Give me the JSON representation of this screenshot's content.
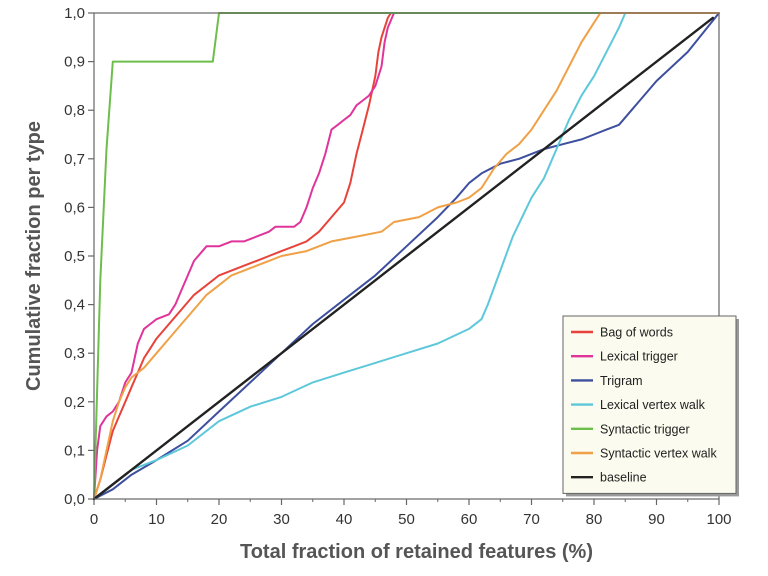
{
  "chart_data": {
    "type": "line",
    "title": "",
    "xlabel": "Total fraction of retained features (%)",
    "ylabel": "Cumulative fraction per type",
    "xlim": [
      0,
      100
    ],
    "ylim": [
      0,
      1
    ],
    "x_ticks": [
      "0",
      "10",
      "20",
      "30",
      "40",
      "50",
      "60",
      "70",
      "80",
      "90",
      "100"
    ],
    "y_ticks": [
      "0,0",
      "0,1",
      "0,2",
      "0,3",
      "0,4",
      "0,5",
      "0,6",
      "0,7",
      "0,8",
      "0,9",
      "1,0"
    ],
    "grid": false,
    "legend_position": "bottom-right",
    "series": [
      {
        "name": "Bag of words",
        "color": "#e8433a",
        "points": [
          [
            0,
            0
          ],
          [
            1,
            0.04
          ],
          [
            2,
            0.09
          ],
          [
            3,
            0.14
          ],
          [
            4,
            0.17
          ],
          [
            5,
            0.2
          ],
          [
            6,
            0.23
          ],
          [
            7,
            0.26
          ],
          [
            8,
            0.29
          ],
          [
            9,
            0.31
          ],
          [
            10,
            0.33
          ],
          [
            12,
            0.36
          ],
          [
            14,
            0.39
          ],
          [
            16,
            0.42
          ],
          [
            18,
            0.44
          ],
          [
            20,
            0.46
          ],
          [
            22,
            0.47
          ],
          [
            24,
            0.48
          ],
          [
            26,
            0.49
          ],
          [
            28,
            0.5
          ],
          [
            30,
            0.51
          ],
          [
            32,
            0.52
          ],
          [
            34,
            0.53
          ],
          [
            36,
            0.55
          ],
          [
            38,
            0.58
          ],
          [
            40,
            0.61
          ],
          [
            41,
            0.65
          ],
          [
            42,
            0.71
          ],
          [
            43,
            0.76
          ],
          [
            44,
            0.81
          ],
          [
            45,
            0.87
          ],
          [
            45.5,
            0.92
          ],
          [
            46,
            0.95
          ],
          [
            47,
            0.99
          ],
          [
            47.5,
            1.0
          ],
          [
            100,
            1.0
          ]
        ]
      },
      {
        "name": "Lexical trigger",
        "color": "#e0349a",
        "points": [
          [
            0,
            0
          ],
          [
            0.5,
            0.1
          ],
          [
            1,
            0.15
          ],
          [
            2,
            0.17
          ],
          [
            3,
            0.18
          ],
          [
            4,
            0.2
          ],
          [
            5,
            0.24
          ],
          [
            6,
            0.26
          ],
          [
            7,
            0.32
          ],
          [
            8,
            0.35
          ],
          [
            9,
            0.36
          ],
          [
            10,
            0.37
          ],
          [
            12,
            0.38
          ],
          [
            13,
            0.4
          ],
          [
            14,
            0.43
          ],
          [
            15,
            0.46
          ],
          [
            16,
            0.49
          ],
          [
            18,
            0.52
          ],
          [
            20,
            0.52
          ],
          [
            22,
            0.53
          ],
          [
            24,
            0.53
          ],
          [
            26,
            0.54
          ],
          [
            28,
            0.55
          ],
          [
            29,
            0.56
          ],
          [
            32,
            0.56
          ],
          [
            33,
            0.57
          ],
          [
            34,
            0.6
          ],
          [
            35,
            0.64
          ],
          [
            36,
            0.67
          ],
          [
            37,
            0.71
          ],
          [
            38,
            0.76
          ],
          [
            39,
            0.77
          ],
          [
            40,
            0.78
          ],
          [
            41,
            0.79
          ],
          [
            42,
            0.81
          ],
          [
            43,
            0.82
          ],
          [
            44,
            0.83
          ],
          [
            45,
            0.85
          ],
          [
            46,
            0.89
          ],
          [
            46.5,
            0.94
          ],
          [
            47,
            0.97
          ],
          [
            48,
            1.0
          ],
          [
            100,
            1.0
          ]
        ]
      },
      {
        "name": "Trigram",
        "color": "#3d4f9e",
        "points": [
          [
            0,
            0
          ],
          [
            3,
            0.02
          ],
          [
            6,
            0.05
          ],
          [
            10,
            0.08
          ],
          [
            15,
            0.12
          ],
          [
            20,
            0.18
          ],
          [
            25,
            0.24
          ],
          [
            30,
            0.3
          ],
          [
            35,
            0.36
          ],
          [
            40,
            0.41
          ],
          [
            45,
            0.46
          ],
          [
            50,
            0.52
          ],
          [
            55,
            0.58
          ],
          [
            58,
            0.62
          ],
          [
            60,
            0.65
          ],
          [
            62,
            0.67
          ],
          [
            65,
            0.69
          ],
          [
            68,
            0.7
          ],
          [
            70,
            0.71
          ],
          [
            72,
            0.72
          ],
          [
            75,
            0.73
          ],
          [
            78,
            0.74
          ],
          [
            80,
            0.75
          ],
          [
            82,
            0.76
          ],
          [
            84,
            0.77
          ],
          [
            86,
            0.8
          ],
          [
            90,
            0.86
          ],
          [
            95,
            0.92
          ],
          [
            100,
            1.0
          ]
        ]
      },
      {
        "name": "Lexical vertex walk",
        "color": "#5ec8db",
        "points": [
          [
            0,
            0
          ],
          [
            3,
            0.03
          ],
          [
            6,
            0.06
          ],
          [
            10,
            0.08
          ],
          [
            15,
            0.11
          ],
          [
            20,
            0.16
          ],
          [
            25,
            0.19
          ],
          [
            30,
            0.21
          ],
          [
            35,
            0.24
          ],
          [
            40,
            0.26
          ],
          [
            45,
            0.28
          ],
          [
            50,
            0.3
          ],
          [
            55,
            0.32
          ],
          [
            60,
            0.35
          ],
          [
            62,
            0.37
          ],
          [
            63,
            0.4
          ],
          [
            65,
            0.47
          ],
          [
            67,
            0.54
          ],
          [
            70,
            0.62
          ],
          [
            72,
            0.66
          ],
          [
            74,
            0.72
          ],
          [
            76,
            0.78
          ],
          [
            78,
            0.83
          ],
          [
            80,
            0.87
          ],
          [
            82,
            0.92
          ],
          [
            84,
            0.97
          ],
          [
            85,
            1.0
          ],
          [
            100,
            1.0
          ]
        ]
      },
      {
        "name": "Syntactic trigger",
        "color": "#6cbf4a",
        "points": [
          [
            0,
            0
          ],
          [
            1,
            0.45
          ],
          [
            2,
            0.72
          ],
          [
            3,
            0.9
          ],
          [
            19,
            0.9
          ],
          [
            20,
            1.0
          ],
          [
            100,
            1.0
          ]
        ]
      },
      {
        "name": "Syntactic vertex walk",
        "color": "#f0a045",
        "points": [
          [
            0,
            0
          ],
          [
            1,
            0.04
          ],
          [
            2,
            0.1
          ],
          [
            3,
            0.16
          ],
          [
            4,
            0.2
          ],
          [
            5,
            0.23
          ],
          [
            6,
            0.25
          ],
          [
            8,
            0.27
          ],
          [
            10,
            0.3
          ],
          [
            12,
            0.33
          ],
          [
            14,
            0.36
          ],
          [
            16,
            0.39
          ],
          [
            18,
            0.42
          ],
          [
            20,
            0.44
          ],
          [
            22,
            0.46
          ],
          [
            24,
            0.47
          ],
          [
            26,
            0.48
          ],
          [
            28,
            0.49
          ],
          [
            30,
            0.5
          ],
          [
            34,
            0.51
          ],
          [
            38,
            0.53
          ],
          [
            42,
            0.54
          ],
          [
            46,
            0.55
          ],
          [
            48,
            0.57
          ],
          [
            52,
            0.58
          ],
          [
            55,
            0.6
          ],
          [
            58,
            0.61
          ],
          [
            60,
            0.62
          ],
          [
            62,
            0.64
          ],
          [
            64,
            0.68
          ],
          [
            66,
            0.71
          ],
          [
            68,
            0.73
          ],
          [
            70,
            0.76
          ],
          [
            72,
            0.8
          ],
          [
            74,
            0.84
          ],
          [
            76,
            0.89
          ],
          [
            78,
            0.94
          ],
          [
            80,
            0.98
          ],
          [
            81,
            1.0
          ],
          [
            100,
            1.0
          ]
        ]
      },
      {
        "name": "baseline",
        "color": "#222222",
        "points": [
          [
            0,
            0
          ],
          [
            99,
            0.99
          ]
        ]
      }
    ]
  }
}
